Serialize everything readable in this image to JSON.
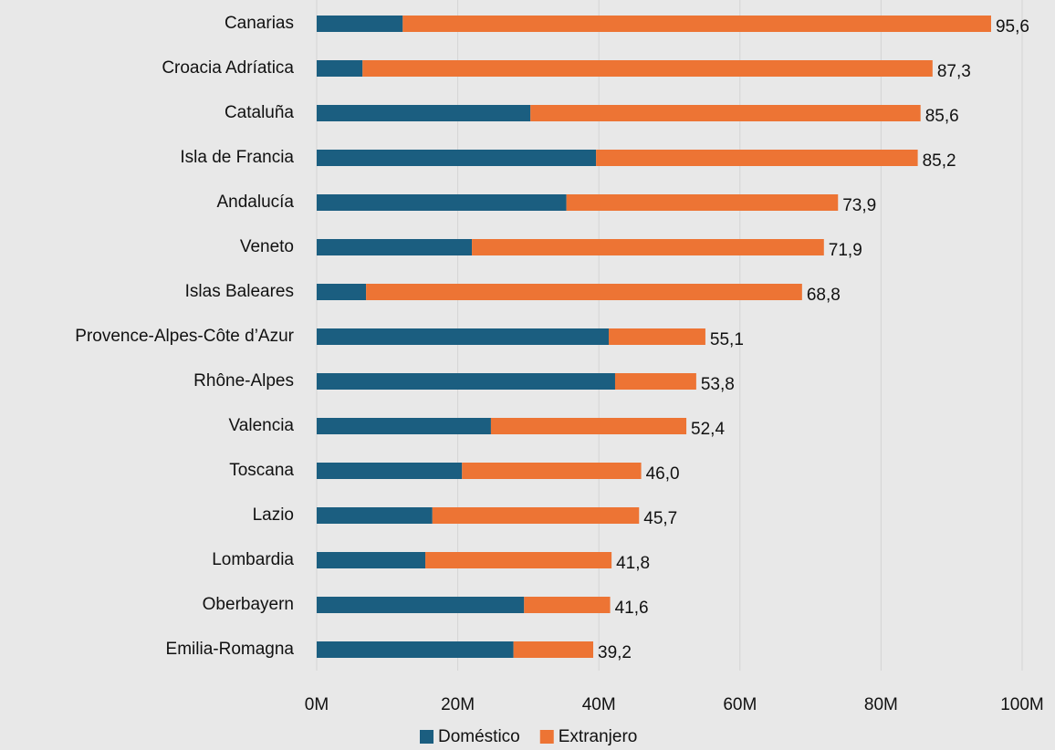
{
  "chart_data": {
    "type": "bar",
    "orientation": "horizontal",
    "stacked": true,
    "categories": [
      "Canarias",
      "Croacia Adríatica",
      "Cataluña",
      "Isla de Francia",
      "Andalucía",
      "Veneto",
      "Islas Baleares",
      "Provence-Alpes-Côte d’Azur",
      "Rhône-Alpes",
      "Valencia",
      "Toscana",
      "Lazio",
      "Lombardia",
      "Oberbayern",
      "Emilia-Romagna"
    ],
    "series": [
      {
        "name": "Doméstico",
        "color": "#1b5e80",
        "values": [
          12.2,
          6.5,
          30.3,
          39.6,
          35.4,
          22.0,
          7.0,
          41.4,
          42.3,
          24.7,
          20.6,
          16.4,
          15.4,
          29.4,
          27.9
        ]
      },
      {
        "name": "Extranjero",
        "color": "#ed7434",
        "values": [
          83.4,
          80.8,
          55.3,
          45.6,
          38.5,
          49.9,
          61.8,
          13.7,
          11.5,
          27.7,
          25.4,
          29.3,
          26.4,
          12.2,
          11.3
        ]
      }
    ],
    "totals": [
      95.6,
      87.3,
      85.6,
      85.2,
      73.9,
      71.9,
      68.8,
      55.1,
      53.8,
      52.4,
      46.0,
      45.7,
      41.8,
      41.6,
      39.2
    ],
    "total_labels": [
      "95,6",
      "87,3",
      "85,6",
      "85,2",
      "73,9",
      "71,9",
      "68,8",
      "55,1",
      "53,8",
      "52,4",
      "46,0",
      "45,7",
      "41,8",
      "41,6",
      "39,2"
    ],
    "xlim": [
      0,
      100
    ],
    "xticks": [
      {
        "value": 0,
        "label": "0M"
      },
      {
        "value": 20,
        "label": "20M"
      },
      {
        "value": 40,
        "label": "40M"
      },
      {
        "value": 60,
        "label": "60M"
      },
      {
        "value": 80,
        "label": "80M"
      },
      {
        "value": 100,
        "label": "100M"
      }
    ],
    "grid": true,
    "legend": "bottom"
  }
}
